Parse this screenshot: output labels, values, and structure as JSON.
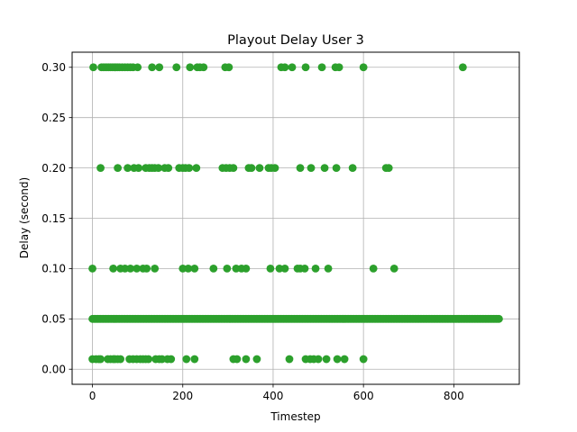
{
  "chart_data": {
    "type": "scatter",
    "title": "Playout Delay User 3",
    "xlabel": "Timestep",
    "ylabel": "Delay (second)",
    "xlim": [
      -45,
      945
    ],
    "ylim": [
      -0.015,
      0.315
    ],
    "xticks": [
      0,
      200,
      400,
      600,
      800
    ],
    "yticks": [
      0.0,
      0.05,
      0.1,
      0.15,
      0.2,
      0.25,
      0.3
    ],
    "xtick_labels": [
      "0",
      "200",
      "400",
      "600",
      "800"
    ],
    "ytick_labels": [
      "0.00",
      "0.05",
      "0.10",
      "0.15",
      "0.20",
      "0.25",
      "0.30"
    ],
    "grid": true,
    "marker_color": "#2ca02c",
    "series": [
      {
        "points": [
          {
            "y": 0.3,
            "x": [
              2,
              20,
              24,
              28,
              32,
              36,
              40,
              44,
              48,
              52,
              56,
              60,
              66,
              72,
              78,
              84,
              90,
              100,
              132,
              148,
              186,
              216,
              232,
              238,
              246,
              294,
              302,
              418,
              426,
              442,
              472,
              508,
              538,
              546,
              600,
              820
            ]
          },
          {
            "y": 0.2,
            "x": [
              18,
              56,
              78,
              92,
              102,
              118,
              126,
              132,
              138,
              146,
              160,
              168,
              192,
              200,
              206,
              214,
              230,
              288,
              296,
              304,
              312,
              346,
              352,
              370,
              390,
              396,
              404,
              460,
              484,
              514,
              540,
              576,
              650,
              656
            ]
          },
          {
            "y": 0.1,
            "x": [
              0,
              46,
              62,
              72,
              84,
              98,
              112,
              120,
              138,
              200,
              212,
              226,
              268,
              298,
              318,
              330,
              340,
              394,
              414,
              426,
              454,
              460,
              470,
              494,
              522,
              622,
              668
            ]
          },
          {
            "y": 0.01,
            "x": [
              0,
              8,
              14,
              18,
              34,
              40,
              46,
              50,
              56,
              62,
              82,
              90,
              98,
              106,
              112,
              118,
              124,
              140,
              148,
              154,
              166,
              174,
              208,
              226,
              312,
              320,
              340,
              364,
              436,
              472,
              482,
              490,
              500,
              518,
              542,
              558,
              600
            ]
          }
        ],
        "dense_band": {
          "y": 0.05,
          "x_from": 0,
          "x_to": 900
        }
      }
    ]
  }
}
